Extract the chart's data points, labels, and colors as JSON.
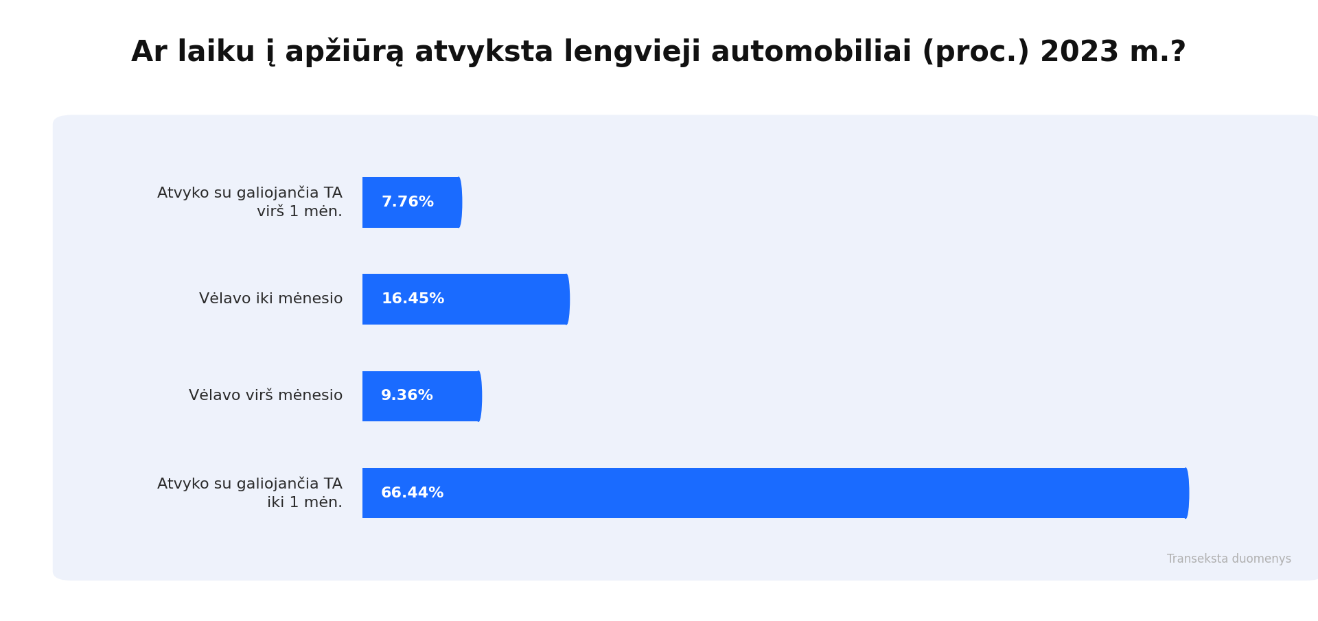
{
  "title": "Ar laiku į apžiūrą atvyksta lengvieji automobiliai (proc.) 2023 m.?",
  "categories": [
    "Atvyko su galiojančia TA\nvirš 1 mėn.",
    "Vėlavo iki mėnesio",
    "Vėlavo virš mėnesio",
    "Atvyko su galiojančia TA\niki 1 mėn."
  ],
  "values": [
    7.76,
    16.45,
    9.36,
    66.44
  ],
  "labels": [
    "7.76%",
    "16.45%",
    "9.36%",
    "66.44%"
  ],
  "bar_color": "#1a6bff",
  "background_color": "#ffffff",
  "panel_color": "#eef2fb",
  "title_fontsize": 30,
  "label_fontsize": 16,
  "value_fontsize": 16,
  "source_text": "Transeksta duomenys",
  "source_fontsize": 12,
  "source_color": "#b0b0b0",
  "xlim_max": 75
}
